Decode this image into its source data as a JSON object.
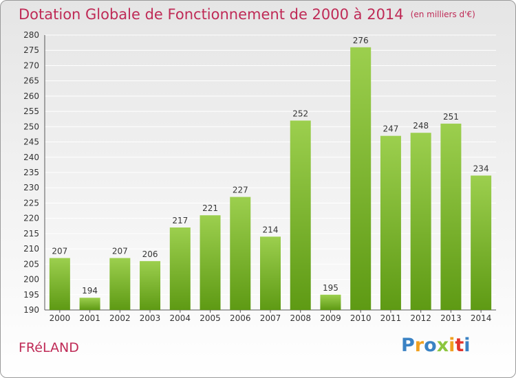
{
  "title": "Dotation Globale de Fonctionnement de 2000 à 2014",
  "subtitle": "(en milliers d'€)",
  "commune": "FRéLAND",
  "logo": {
    "letters": [
      "P",
      "r",
      "o",
      "x",
      "i",
      "t",
      "i"
    ],
    "colors": [
      "#3a82c4",
      "#f0a020",
      "#3a82c4",
      "#8cc63f",
      "#f0a020",
      "#e2342b",
      "#3a82c4"
    ]
  },
  "chart_data": {
    "type": "bar",
    "categories": [
      "2000",
      "2001",
      "2002",
      "2003",
      "2004",
      "2005",
      "2006",
      "2007",
      "2008",
      "2009",
      "2010",
      "2011",
      "2012",
      "2013",
      "2014"
    ],
    "values": [
      207,
      194,
      207,
      206,
      217,
      221,
      227,
      214,
      252,
      195,
      276,
      247,
      248,
      251,
      234
    ],
    "ylim": [
      190,
      280
    ],
    "yticks": [
      190,
      195,
      200,
      205,
      210,
      215,
      220,
      225,
      230,
      235,
      240,
      245,
      250,
      255,
      260,
      265,
      270,
      275,
      280
    ],
    "grid": true,
    "bar_color": "#7ab829"
  }
}
